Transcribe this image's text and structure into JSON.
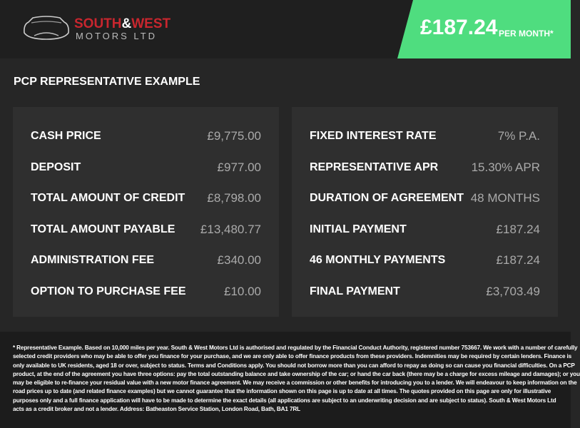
{
  "header": {
    "logo": {
      "line1_a": "SOUTH",
      "amp": "&",
      "line1_b": "WEST",
      "line2": "MOTORS LTD"
    },
    "price": "£187.24",
    "per_month": "PER MONTH*",
    "accent_color": "#4fdd7f"
  },
  "section_title": "PCP REPRESENTATIVE EXAMPLE",
  "left_rows": [
    {
      "label": "CASH PRICE",
      "value": "£9,775.00"
    },
    {
      "label": "DEPOSIT",
      "value": "£977.00"
    },
    {
      "label": "TOTAL AMOUNT OF CREDIT",
      "value": "£8,798.00"
    },
    {
      "label": "TOTAL AMOUNT PAYABLE",
      "value": "£13,480.77"
    },
    {
      "label": "ADMINISTRATION FEE",
      "value": "£340.00"
    },
    {
      "label": "OPTION TO PURCHASE FEE",
      "value": "£10.00"
    }
  ],
  "right_rows": [
    {
      "label": "FIXED INTEREST RATE",
      "value": "7% P.A."
    },
    {
      "label": "REPRESENTATIVE APR",
      "value": "15.30% APR"
    },
    {
      "label": "DURATION OF AGREEMENT",
      "value": "48 MONTHS"
    },
    {
      "label": "INITIAL PAYMENT",
      "value": "£187.24"
    },
    {
      "label": "46 MONTHLY PAYMENTS",
      "value": "£187.24"
    },
    {
      "label": "FINAL PAYMENT",
      "value": "£3,703.49"
    }
  ],
  "footnote_lines": [
    "* Representative Example. Based on 10,000 miles per year. South & West Motors Ltd is authorised and regulated by the Financial Conduct Authority, registered number 753667. We work with a number of carefully",
    "selected credit providers who may be able to offer you finance for your purchase, and we are only able to offer finance products from these providers. Indemnities may be required by certain lenders. Finance is",
    "only available to UK residents, aged 18 or over, subject to status. Terms and Conditions apply. You should not borrow more than you can afford to repay as doing so can cause you financial difficulties. On a PCP",
    "product, at the end of the agreement you have three options: pay the total outstanding balance and take ownership of the car; or hand the car back (there may be a charge for excess mileage and damages); or you",
    "may be eligible to re-finance your residual value with a new motor finance agreement. We may receive a commission or other benefits for introducing you to a lender. We will endeavour to keep information on the",
    "road prices up to date (and related finance examples) but we cannot guarantee that the information shown on this page is up to date at all times. The quotes provided on this page are only for illustrative",
    "purposes only and a full finance application will have to be made to determine the exact details (all applications are subject to an underwriting decision and are subject to status). South & West Motors Ltd",
    "acts as a credit broker and not a lender. Address: Batheaston Service Station, London Road, Bath, BA1 7RL"
  ]
}
